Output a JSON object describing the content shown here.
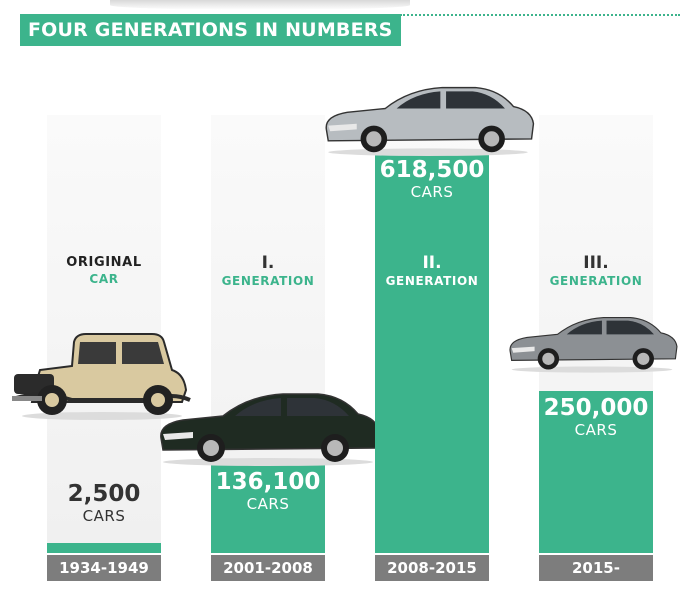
{
  "page": {
    "title": "FOUR GENERATIONS IN NUMBERS",
    "colors": {
      "accent": "#3cb48c",
      "year_box": "#7d7d7d",
      "column_bg": "#f2f2f2",
      "dark_text": "#333333"
    }
  },
  "chart_data": {
    "type": "bar",
    "title": "FOUR GENERATIONS IN NUMBERS",
    "xlabel": "",
    "ylabel": "",
    "categories": [
      "1934-1949",
      "2001-2008",
      "2008-2015",
      "2015-"
    ],
    "values": [
      2500,
      136100,
      618500,
      250000
    ],
    "unit": "CARS",
    "value_labels": [
      "2,500",
      "136,100",
      "618,500",
      "250,000"
    ],
    "generation_labels": [
      {
        "top": "ORIGINAL",
        "bottom": "CAR"
      },
      {
        "top": "I.",
        "bottom": "GENERATION"
      },
      {
        "top": "II.",
        "bottom": "GENERATION"
      },
      {
        "top": "III.",
        "bottom": "GENERATION"
      }
    ],
    "icons": [
      "vintage-car-icon",
      "sedan-car-icon",
      "sedan-car-icon",
      "sedan-car-icon"
    ],
    "car_colors": [
      "#d9c9a0",
      "#1f2b22",
      "#b7bcc0",
      "#8c9094"
    ],
    "grid": false,
    "legend": "none"
  }
}
